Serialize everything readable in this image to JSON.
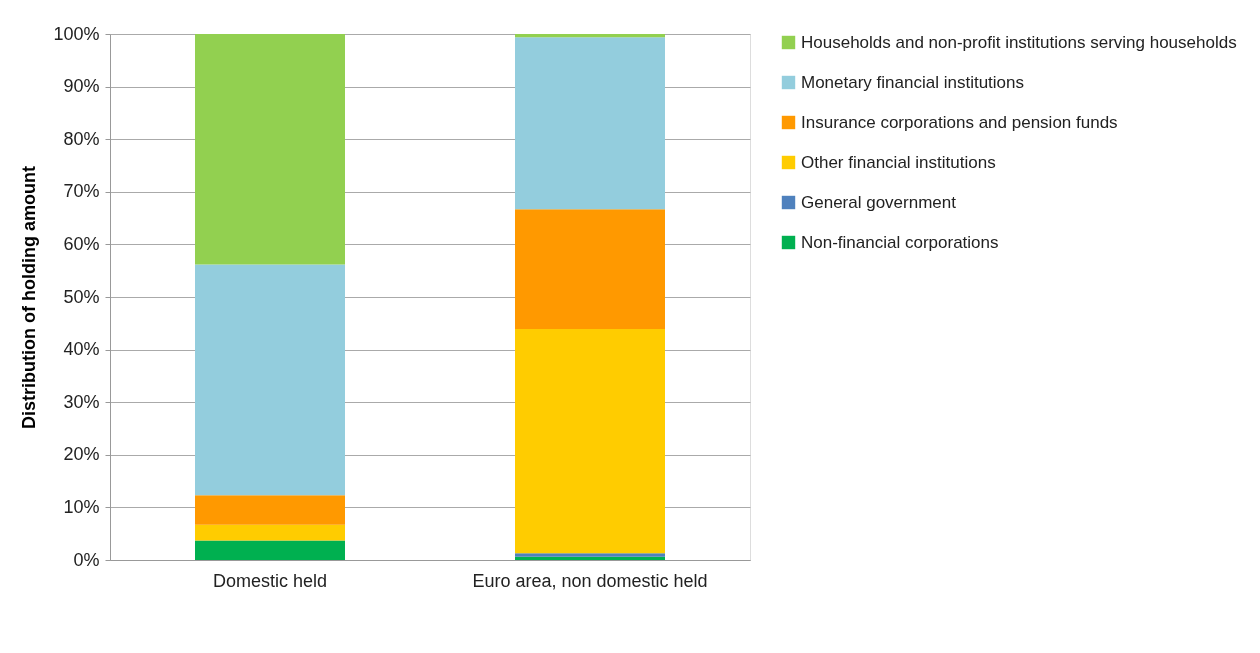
{
  "chart_data": {
    "type": "bar",
    "stacked": true,
    "ylabel": "Distribution of holding amount",
    "categories": [
      "Domestic held",
      "Euro area, non domestic held"
    ],
    "series": [
      {
        "name": "Non-financial corporations",
        "color": "#00b050",
        "values": [
          3.7,
          0.6
        ]
      },
      {
        "name": "General government",
        "color": "#4f81bd",
        "values": [
          0,
          0.7
        ]
      },
      {
        "name": "Other financial institutions",
        "color": "#ffcc00",
        "values": [
          3.0,
          42.6
        ]
      },
      {
        "name": "Insurance corporations and pension funds",
        "color": "#ff9900",
        "values": [
          5.6,
          22.8
        ]
      },
      {
        "name": "Monetary financial institutions",
        "color": "#93cddd",
        "values": [
          43.9,
          32.7
        ]
      },
      {
        "name": "Households and non-profit institutions serving households",
        "color": "#92d050",
        "values": [
          43.8,
          0.6
        ]
      }
    ],
    "ylim": [
      0,
      100
    ],
    "yticks": [
      {
        "value": 0,
        "label": "0%"
      },
      {
        "value": 10,
        "label": "10%"
      },
      {
        "value": 20,
        "label": "20%"
      },
      {
        "value": 30,
        "label": "30%"
      },
      {
        "value": 40,
        "label": "40%"
      },
      {
        "value": 50,
        "label": "50%"
      },
      {
        "value": 60,
        "label": "60%"
      },
      {
        "value": 70,
        "label": "70%"
      },
      {
        "value": 80,
        "label": "80%"
      },
      {
        "value": 90,
        "label": "90%"
      },
      {
        "value": 100,
        "label": "100%"
      }
    ],
    "grid": "y",
    "legend": "right"
  }
}
